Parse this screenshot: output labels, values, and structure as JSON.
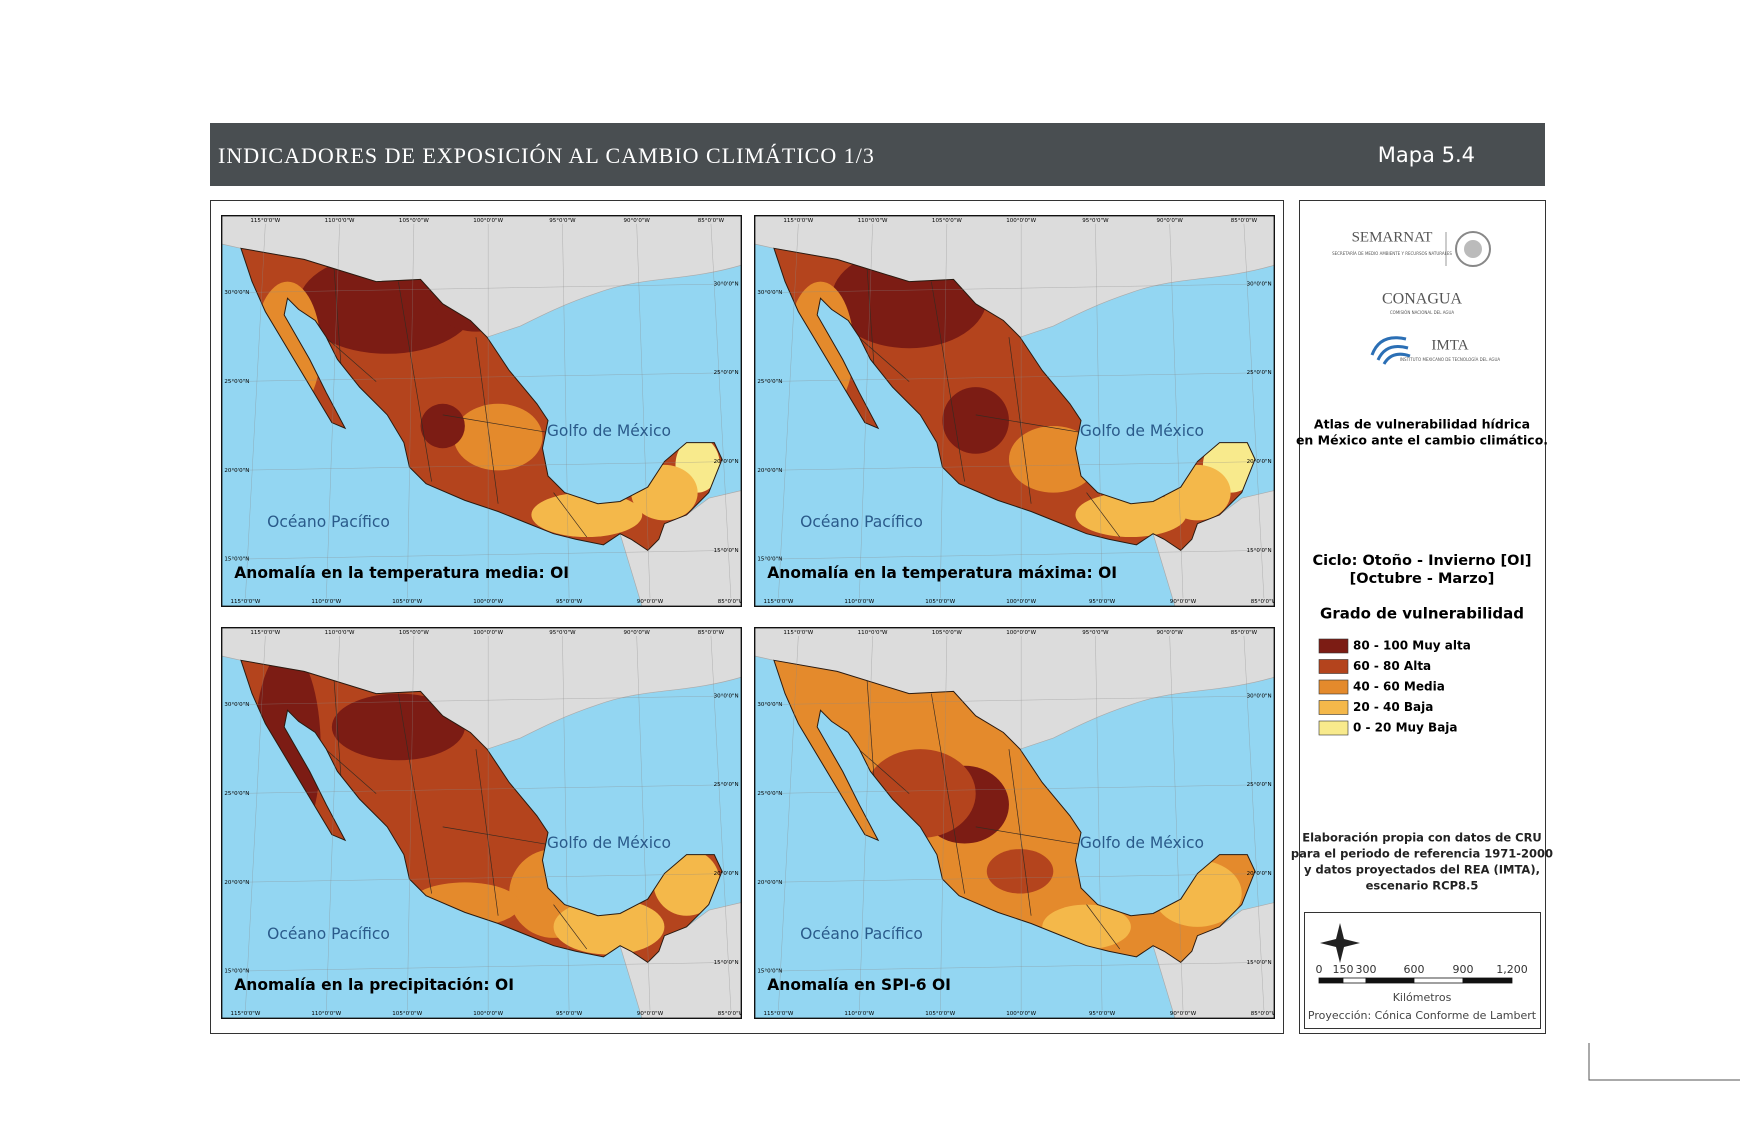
{
  "header": {
    "title": "INDICADORES DE EXPOSICIÓN AL CAMBIO CLIMÁTICO 1/3",
    "map_number": "Mapa 5.4"
  },
  "graticule": {
    "lon": [
      "115°0'0\"W",
      "110°0'0\"W",
      "105°0'0\"W",
      "100°0'0\"W",
      "95°0'0\"W",
      "90°0'0\"W",
      "85°0'0\"W"
    ],
    "lat": [
      "30°0'0\"N",
      "25°0'0\"N",
      "20°0'0\"N",
      "15°0'0\"N"
    ]
  },
  "gulf_label": "Golfo de México",
  "ocean_label": "Océano Pacífico",
  "panels": [
    {
      "title": "Anomalía en la temperatura media: OI"
    },
    {
      "title": "Anomalía en la temperatura máxima: OI"
    },
    {
      "title": "Anomalía en la precipitación: OI"
    },
    {
      "title": "Anomalía en SPI-6 OI"
    }
  ],
  "logos": {
    "semarnat": "SEMARNAT",
    "semarnat_sub": "SECRETARÍA DE MEDIO AMBIENTE Y RECURSOS NATURALES",
    "conagua": "CONAGUA",
    "conagua_sub": "COMISIÓN NACIONAL DEL AGUA",
    "imta": "IMTA",
    "imta_sub": "INSTITUTO MEXICANO DE TECNOLOGÍA DEL AGUA"
  },
  "atlas": [
    "Atlas de vulnerabilidad hídrica",
    "en México ante el cambio climático."
  ],
  "cycle": [
    "Ciclo: Otoño - Invierno [OI]",
    "[Octubre - Marzo]"
  ],
  "legend": {
    "title": "Grado de vulnerabilidad",
    "items": [
      {
        "label": "80 - 100 Muy alta",
        "color": "#7c1c14"
      },
      {
        "label": "60 - 80 Alta",
        "color": "#b4441d"
      },
      {
        "label": "40 - 60 Media",
        "color": "#e48a2c"
      },
      {
        "label": "20 - 40 Baja",
        "color": "#f4b84a"
      },
      {
        "label": "0 - 20 Muy Baja",
        "color": "#f8ea8c"
      }
    ]
  },
  "source": [
    "Elaboración propia con datos de CRU",
    "para el periodo de referencia 1971-2000",
    "y datos proyectados del REA (IMTA),",
    "escenario RCP8.5"
  ],
  "scale": {
    "ticks": [
      "0",
      "150",
      "300",
      "600",
      "900",
      "1,200"
    ],
    "unit": "Kilómetros",
    "projection": "Proyección: Cónica Conforme de Lambert"
  }
}
